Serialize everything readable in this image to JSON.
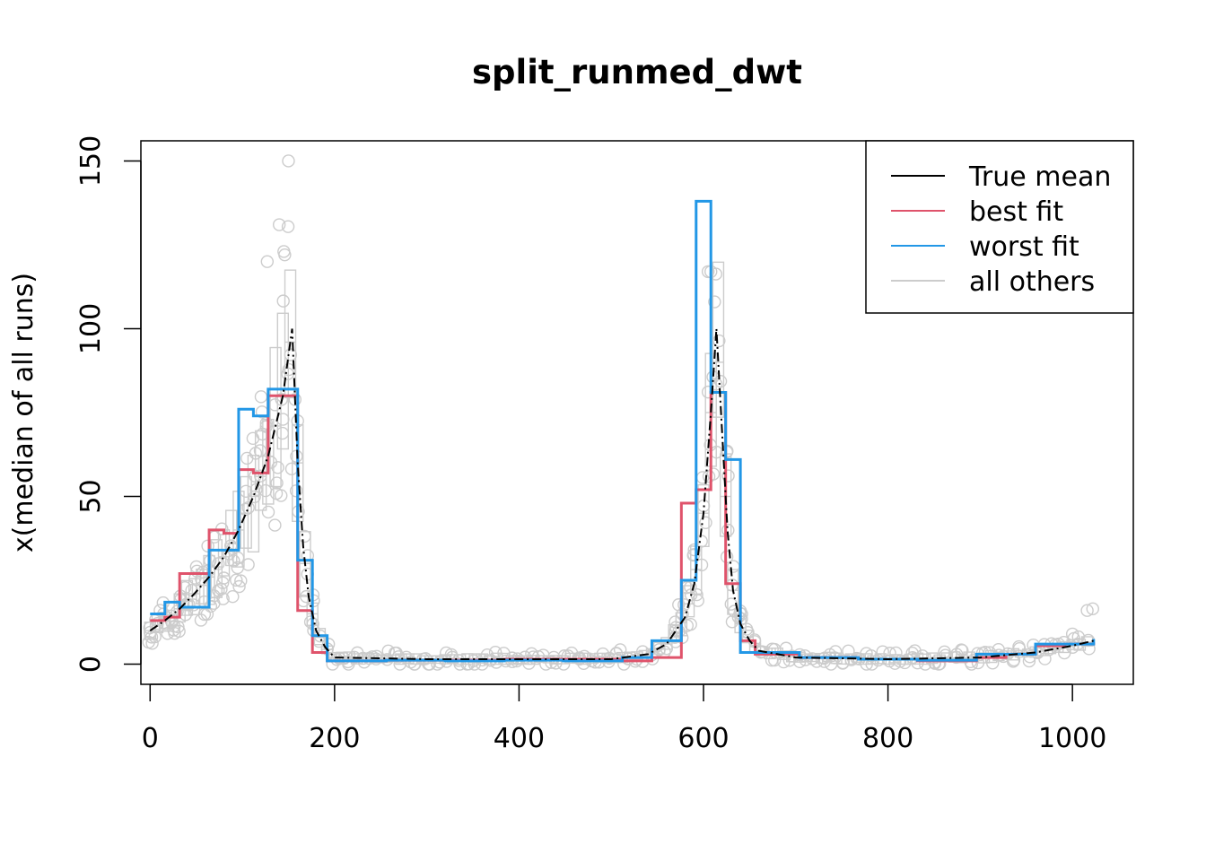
{
  "chart_data": {
    "type": "line",
    "title": "split_runmed_dwt",
    "xlabel": "",
    "ylabel": "x(median of all runs)",
    "xlim": [
      -10,
      1066
    ],
    "ylim": [
      -6,
      156
    ],
    "x_ticks": [
      0,
      200,
      400,
      600,
      800,
      1000
    ],
    "x_tick_labels": [
      "0",
      "200",
      "400",
      "600",
      "800",
      "1000"
    ],
    "y_ticks": [
      0,
      50,
      100,
      150
    ],
    "y_tick_labels": [
      "0",
      "50",
      "100",
      "150"
    ],
    "grid": false,
    "legend": {
      "position": "top-right",
      "entries": [
        {
          "label": "True mean",
          "color": "#000000"
        },
        {
          "label": "best fit",
          "color": "#DF536B"
        },
        {
          "label": "worst fit",
          "color": "#2297E6"
        },
        {
          "label": "all others",
          "color": "#CCCCCC"
        }
      ]
    },
    "series": [
      {
        "name": "True mean",
        "color": "#000000",
        "style": "dashed",
        "x": [
          0,
          16,
          32,
          48,
          64,
          80,
          96,
          112,
          128,
          144,
          154,
          160,
          166,
          172,
          180,
          190,
          200,
          300,
          400,
          500,
          540,
          560,
          580,
          590,
          600,
          608,
          614,
          620,
          626,
          632,
          640,
          650,
          660,
          700,
          800,
          900,
          960,
          1000,
          1023
        ],
        "y": [
          10,
          13,
          16.5,
          21,
          26,
          32,
          40,
          50,
          62,
          80,
          100,
          60,
          35,
          20,
          10,
          5,
          2,
          1.5,
          1.5,
          1.5,
          3,
          6,
          14,
          24,
          45,
          75,
          100,
          70,
          40,
          22,
          12,
          7,
          4,
          2,
          1.5,
          2,
          3.5,
          5.5,
          7
        ]
      },
      {
        "name": "best fit",
        "color": "#DF536B",
        "style": "step",
        "x": [
          0,
          16,
          32,
          64,
          80,
          96,
          112,
          128,
          160,
          176,
          192,
          256,
          384,
          512,
          544,
          576,
          592,
          608,
          624,
          640,
          656,
          704,
          768,
          832,
          896,
          928,
          960,
          992,
          1023
        ],
        "y": [
          13,
          14,
          27,
          40,
          39,
          58,
          57,
          80,
          16,
          3.5,
          1,
          1.2,
          1.5,
          1,
          2,
          48,
          52,
          81,
          24,
          7,
          3,
          2,
          1.5,
          1,
          2,
          3,
          5.5,
          6,
          6.5
        ]
      },
      {
        "name": "worst fit",
        "color": "#2297E6",
        "style": "step",
        "x": [
          0,
          16,
          32,
          64,
          96,
          112,
          128,
          160,
          176,
          192,
          256,
          320,
          384,
          448,
          512,
          544,
          576,
          592,
          608,
          624,
          640,
          704,
          768,
          832,
          896,
          960,
          1023
        ],
        "y": [
          15,
          18.5,
          17,
          34,
          76,
          74,
          82,
          31,
          8.5,
          1,
          1.2,
          1,
          1.2,
          1,
          2,
          7,
          25,
          138,
          81,
          61,
          3.5,
          2,
          1.5,
          1.2,
          3,
          6,
          7.5
        ]
      }
    ]
  }
}
